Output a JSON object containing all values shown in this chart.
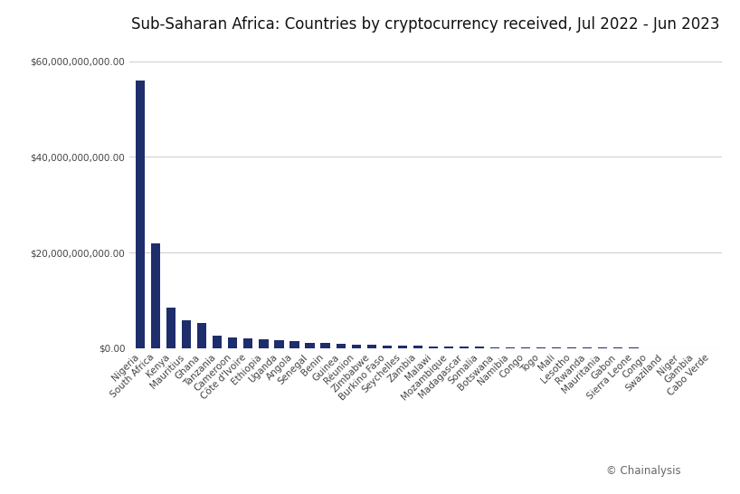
{
  "title": "Sub-Saharan Africa: Countries by cryptocurrency received, Jul 2022 - Jun 2023",
  "bar_color": "#1e2d6b",
  "background_color": "#ffffff",
  "grid_color": "#d0d0d0",
  "categories": [
    "Nigeria",
    "South Africa",
    "Kenya",
    "Mauritius",
    "Ghana",
    "Tanzania",
    "Cameroon",
    "Côte d'Ivoire",
    "Ethiopia",
    "Uganda",
    "Angola",
    "Senegal",
    "Benin",
    "Guinea",
    "Réunion",
    "Zimbabwe",
    "Burkino Faso",
    "Seychelles",
    "Zambia",
    "Malawi",
    "Mozambique",
    "Madagascar",
    "Somalia",
    "Botswana",
    "Namibia",
    "Congo",
    "Togo",
    "Mali",
    "Lesotho",
    "Rwanda",
    "Mauritania",
    "Gabon",
    "Sierra Leone",
    "Congo",
    "Swaziland",
    "Niger",
    "Gambia",
    "Cabo Verde"
  ],
  "values": [
    56000000000,
    22000000000,
    8500000000,
    5800000000,
    5200000000,
    2600000000,
    2300000000,
    2050000000,
    1850000000,
    1650000000,
    1450000000,
    1200000000,
    1050000000,
    920000000,
    830000000,
    730000000,
    640000000,
    560000000,
    490000000,
    420000000,
    370000000,
    330000000,
    295000000,
    265000000,
    235000000,
    210000000,
    185000000,
    165000000,
    148000000,
    132000000,
    118000000,
    100000000,
    84000000,
    68000000,
    52000000,
    38000000,
    24000000,
    10000000
  ],
  "ylim": [
    0,
    63000000000
  ],
  "yticks": [
    0,
    20000000000,
    40000000000,
    60000000000
  ],
  "copyright": "© Chainalysis",
  "title_fontsize": 12,
  "tick_fontsize": 7.5,
  "copyright_fontsize": 8.5
}
